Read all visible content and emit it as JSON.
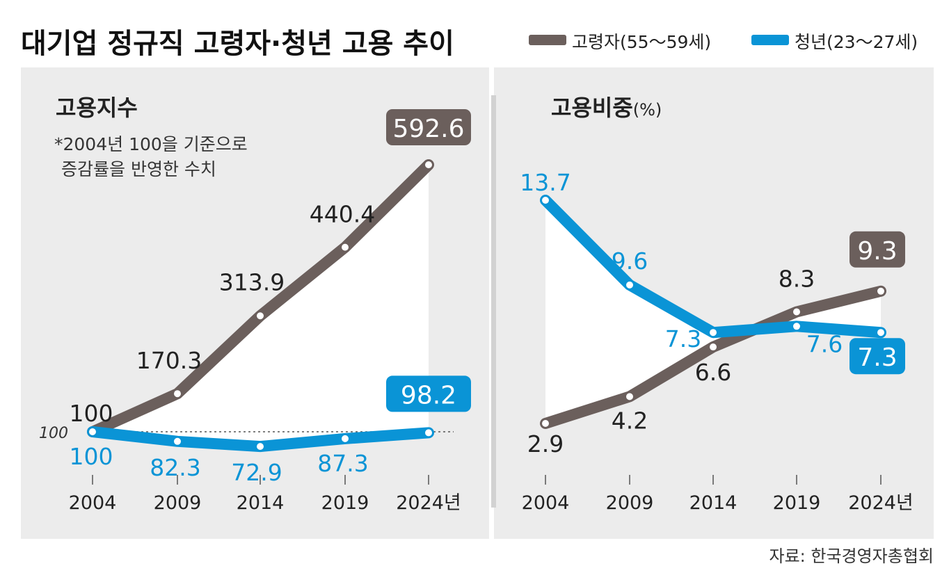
{
  "title": "대기업 정규직 고령자·청년 고용 추이",
  "source": "자료: 한국경영자총협회",
  "colors": {
    "elder": "#6b5f5c",
    "youth": "#0a94d6",
    "panel": "#ececec",
    "fill": "#ffffff",
    "divider": "#d2d2d2"
  },
  "legend": [
    {
      "key": "elder",
      "label": "고령자(55～59세)"
    },
    {
      "key": "youth",
      "label": "청년(23～27세)"
    }
  ],
  "chart_data": [
    {
      "type": "line",
      "title": "고용지수",
      "note": [
        "*2004년 100을 기준으로",
        "증감률을 반영한 수치"
      ],
      "baseline_label": "100",
      "categories": [
        "2004",
        "2009",
        "2014",
        "2019",
        "2024년"
      ],
      "series": [
        {
          "name": "고령자(55～59세)",
          "key": "elder",
          "values": [
            100,
            170.3,
            313.9,
            440.4,
            592.6
          ],
          "labels": [
            "100",
            "170.3",
            "313.9",
            "440.4",
            "592.6"
          ]
        },
        {
          "name": "청년(23～27세)",
          "key": "youth",
          "values": [
            100,
            82.3,
            72.9,
            87.3,
            98.2
          ],
          "labels": [
            "100",
            "82.3",
            "72.9",
            "87.3",
            "98.2"
          ]
        }
      ],
      "baseline": 100
    },
    {
      "type": "line",
      "title": "고용비중",
      "unit": "(%)",
      "categories": [
        "2004",
        "2009",
        "2014",
        "2019",
        "2024년"
      ],
      "series": [
        {
          "name": "고령자(55～59세)",
          "key": "elder",
          "values": [
            2.9,
            4.2,
            6.6,
            8.3,
            9.3
          ],
          "labels": [
            "2.9",
            "4.2",
            "6.6",
            "8.3",
            "9.3"
          ]
        },
        {
          "name": "청년(23～27세)",
          "key": "youth",
          "values": [
            13.7,
            9.6,
            7.3,
            7.6,
            7.3
          ],
          "labels": [
            "13.7",
            "9.6",
            "7.3",
            "7.6",
            "7.3"
          ]
        }
      ]
    }
  ]
}
